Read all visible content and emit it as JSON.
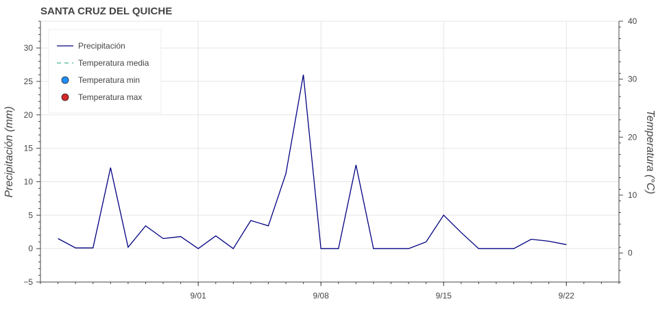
{
  "chart_data": {
    "type": "line",
    "title": "SANTA CRUZ DEL QUICHE",
    "ylabel": "Precipitación (mm)",
    "y2label": "Temperatura (°C)",
    "ylim": [
      -5,
      34
    ],
    "y2lim": [
      -5,
      40
    ],
    "yticks": [
      -5,
      0,
      5,
      10,
      15,
      20,
      25,
      30
    ],
    "y2ticks": [
      0,
      10,
      20,
      30,
      40
    ],
    "x_start": "2023-08-24",
    "xlim": [
      "2023-08-23",
      "2023-09-25"
    ],
    "xticks": [
      {
        "date": "2023-09-01",
        "label": "9/01"
      },
      {
        "date": "2023-09-08",
        "label": "9/08"
      },
      {
        "date": "2023-09-15",
        "label": "9/15"
      },
      {
        "date": "2023-09-22",
        "label": "9/22"
      }
    ],
    "grid": true,
    "legend_position": "top-left",
    "legend": [
      {
        "label": "Precipitación",
        "style": "line",
        "color": "#000080"
      },
      {
        "label": "Temperatura media",
        "style": "dashed",
        "color": "#66c2a5"
      },
      {
        "label": "Temperatura min",
        "style": "circle",
        "color": "#1e90ff"
      },
      {
        "label": "Temperatura max",
        "style": "circle",
        "color": "#d62728"
      }
    ],
    "series": [
      {
        "name": "Precipitación",
        "color": "#000080",
        "values": [
          1.5,
          0.1,
          0.1,
          12.1,
          0.2,
          3.4,
          1.5,
          1.8,
          0.0,
          1.9,
          0.0,
          4.2,
          3.4,
          11.2,
          26.0,
          0.0,
          0.0,
          12.5,
          0.0,
          0.0,
          0.0,
          1.0,
          5.0,
          2.4,
          0.0,
          0.0,
          0.0,
          1.4,
          1.1,
          0.6
        ]
      }
    ]
  }
}
